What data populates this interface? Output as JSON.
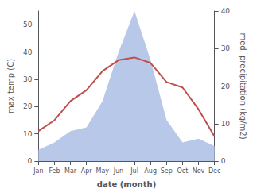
{
  "chart_data": {
    "type": "line",
    "categories": [
      "Jan",
      "Feb",
      "Mar",
      "Apr",
      "May",
      "Jun",
      "Jul",
      "Aug",
      "Sep",
      "Oct",
      "Nov",
      "Dec"
    ],
    "xlabel": "date (month)",
    "ylabel": "max temp (C)",
    "y2label": "med. precipitation (kg/m2)",
    "series": [
      {
        "type": "area",
        "axis": "y2",
        "color": "#b8c8e8",
        "values": [
          3,
          5,
          8,
          9,
          16,
          29,
          40,
          27,
          11,
          5,
          6,
          4
        ]
      },
      {
        "type": "line",
        "color": "#c0504d",
        "values": [
          11,
          15,
          22,
          26,
          33,
          37,
          38,
          36,
          29,
          27,
          19,
          9
        ]
      }
    ],
    "ylim": [
      0,
      55
    ],
    "yticks": [
      0,
      10,
      20,
      30,
      40,
      50
    ],
    "y2lim": [
      0,
      40
    ],
    "y2ticks": [
      0,
      10,
      20,
      30,
      40
    ],
    "grid": false
  }
}
